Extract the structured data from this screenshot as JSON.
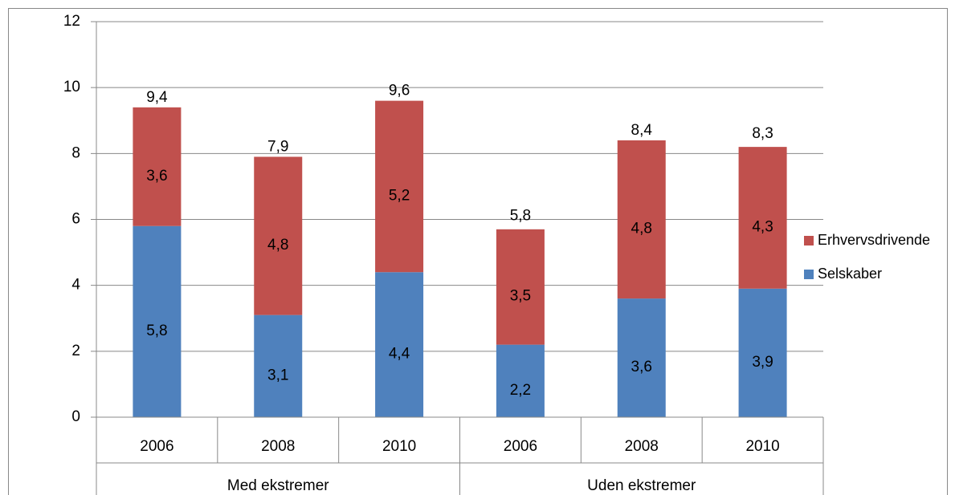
{
  "chart_data": {
    "type": "stacked_bar",
    "groups": [
      {
        "name": "Med ekstremer",
        "categories": [
          "2006",
          "2008",
          "2010"
        ]
      },
      {
        "name": "Uden ekstremer",
        "categories": [
          "2006",
          "2008",
          "2010"
        ]
      }
    ],
    "series": [
      {
        "name": "Selskaber",
        "color": "#4f81bd",
        "values": [
          5.8,
          3.1,
          4.4,
          2.2,
          3.6,
          3.9
        ],
        "value_labels": [
          "5,8",
          "3,1",
          "4,4",
          "2,2",
          "3,6",
          "3,9"
        ]
      },
      {
        "name": "Erhvervsdrivende",
        "color": "#c0504d",
        "values": [
          3.6,
          4.8,
          5.2,
          3.5,
          4.8,
          4.3
        ],
        "value_labels": [
          "3,6",
          "4,8",
          "5,2",
          "3,5",
          "4,8",
          "4,3"
        ]
      }
    ],
    "totals": [
      9.4,
      7.9,
      9.6,
      5.8,
      8.4,
      8.3
    ],
    "totals_labels": [
      "9,4",
      "7,9",
      "9,6",
      "5,8",
      "8,4",
      "8,3"
    ],
    "ylim": [
      0,
      12
    ],
    "yticks": [
      0,
      2,
      4,
      6,
      8,
      10,
      12
    ],
    "grid": true,
    "legend": "right"
  }
}
